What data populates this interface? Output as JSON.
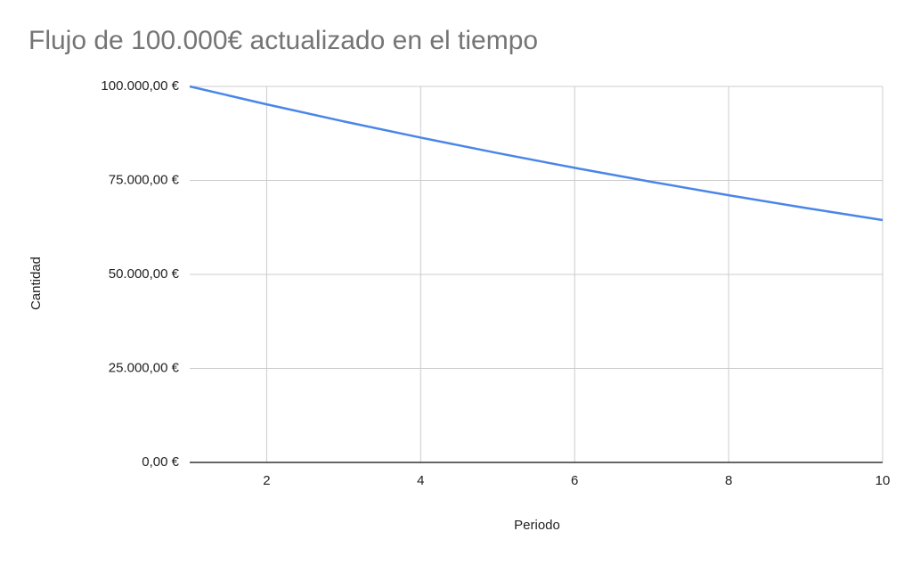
{
  "chart_data": {
    "type": "line",
    "title": "Flujo de 100.000€ actualizado en el tiempo",
    "x_label": "Periodo",
    "y_label": "Cantidad",
    "x": [
      1,
      2,
      3,
      4,
      5,
      6,
      7,
      8,
      9,
      10
    ],
    "values": [
      100000,
      95238,
      90703,
      86384,
      82270,
      78353,
      74622,
      71068,
      67684,
      64461
    ],
    "color": "#4a86e8",
    "xlim": [
      1,
      10
    ],
    "xticks": [
      2,
      4,
      6,
      8,
      10
    ],
    "ylim": [
      0,
      100000
    ],
    "yticks": [
      {
        "value": 0,
        "label": "0,00 €"
      },
      {
        "value": 25000,
        "label": "25.000,00 €"
      },
      {
        "value": 50000,
        "label": "50.000,00 €"
      },
      {
        "value": 75000,
        "label": "75.000,00 €"
      },
      {
        "value": 100000,
        "label": "100.000,00 €"
      }
    ],
    "grid": true
  }
}
